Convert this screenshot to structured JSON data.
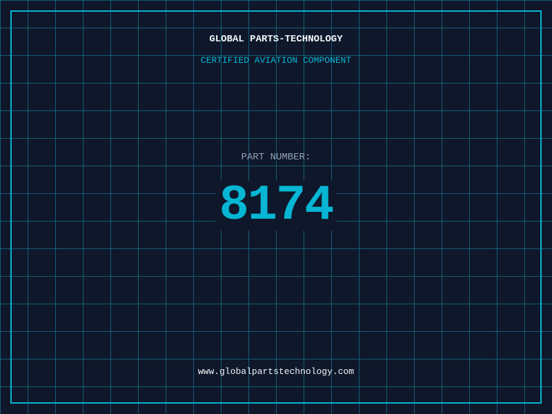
{
  "header": {
    "title": "GLOBAL PARTS-TECHNOLOGY",
    "subtitle": "CERTIFIED AVIATION COMPONENT"
  },
  "part": {
    "label": "PART NUMBER:",
    "number": "8174"
  },
  "footer": {
    "url": "www.globalpartstechnology.com"
  },
  "colors": {
    "background": "#0f172a",
    "accent": "#06b6d4",
    "grid": "#155e75"
  }
}
